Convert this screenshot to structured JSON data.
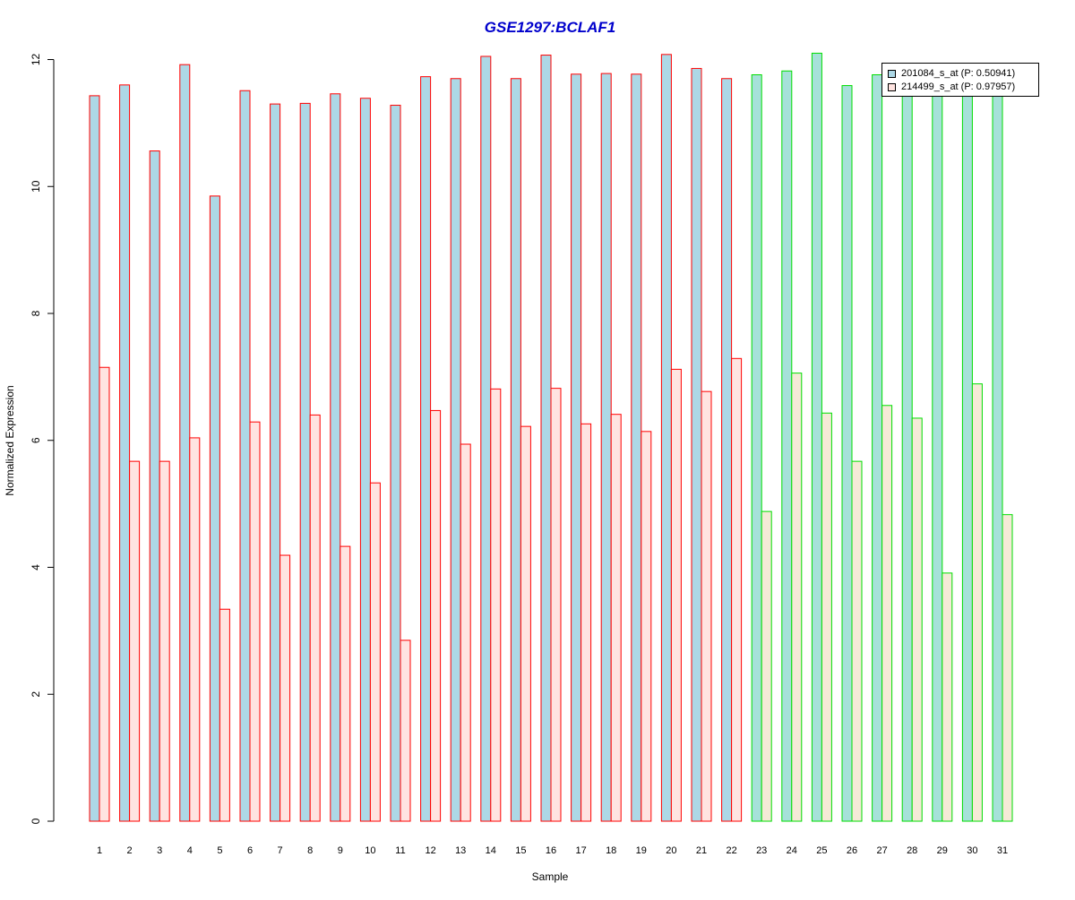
{
  "chart_data": {
    "type": "bar",
    "title": "GSE1297:BCLAF1",
    "xlabel": "Sample",
    "ylabel": "Normalized Expression",
    "ylim": [
      0,
      12
    ],
    "yticks": [
      0,
      2,
      4,
      6,
      8,
      10,
      12
    ],
    "grid": false,
    "legend_placement": "top-right",
    "categories": [
      "1",
      "2",
      "3",
      "4",
      "5",
      "6",
      "7",
      "8",
      "9",
      "10",
      "11",
      "12",
      "13",
      "14",
      "15",
      "16",
      "17",
      "18",
      "19",
      "20",
      "21",
      "22",
      "23",
      "24",
      "25",
      "26",
      "27",
      "28",
      "29",
      "30",
      "31"
    ],
    "group_boundary_after": 22,
    "series": [
      {
        "name": "201084_s_at (P: 0.50941)",
        "fill_group1": "#add8e6",
        "fill_group2": "#a6e1d9",
        "values": [
          11.43,
          11.6,
          10.56,
          11.92,
          9.85,
          11.51,
          11.3,
          11.31,
          11.46,
          11.39,
          11.28,
          11.73,
          11.7,
          12.05,
          11.7,
          12.07,
          11.77,
          11.78,
          11.77,
          12.08,
          11.86,
          11.7,
          11.76,
          11.82,
          12.1,
          11.59,
          11.76,
          11.56,
          11.49,
          11.5,
          11.46
        ]
      },
      {
        "name": "214499_s_at (P: 0.97957)",
        "fill_group1": "#ffe4e1",
        "fill_group2": "#f5ead7",
        "values": [
          7.15,
          5.67,
          5.67,
          6.04,
          3.34,
          6.29,
          4.19,
          6.4,
          4.33,
          5.33,
          2.85,
          6.47,
          5.94,
          6.81,
          6.22,
          6.82,
          6.26,
          6.41,
          6.14,
          7.12,
          6.77,
          7.29,
          4.88,
          7.06,
          6.43,
          5.67,
          6.55,
          6.35,
          3.91,
          6.89,
          4.83
        ]
      }
    ],
    "colors": {
      "title": "#0000cc",
      "border_group1": "#ff0000",
      "border_group2": "#00dd00",
      "axis": "#000000"
    }
  }
}
